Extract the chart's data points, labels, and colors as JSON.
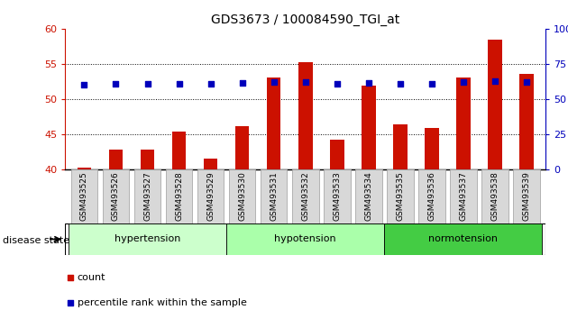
{
  "title": "GDS3673 / 100084590_TGI_at",
  "samples": [
    "GSM493525",
    "GSM493526",
    "GSM493527",
    "GSM493528",
    "GSM493529",
    "GSM493530",
    "GSM493531",
    "GSM493532",
    "GSM493533",
    "GSM493534",
    "GSM493535",
    "GSM493536",
    "GSM493537",
    "GSM493538",
    "GSM493539"
  ],
  "count_values": [
    40.2,
    42.8,
    42.8,
    45.3,
    41.5,
    46.1,
    53.1,
    55.2,
    44.2,
    51.9,
    46.4,
    45.9,
    53.1,
    58.5,
    53.5
  ],
  "percentile_values": [
    60.0,
    60.5,
    60.5,
    60.5,
    60.5,
    61.5,
    62.0,
    62.0,
    60.5,
    61.5,
    60.5,
    60.5,
    62.0,
    62.5,
    62.0
  ],
  "bar_color": "#cc1100",
  "dot_color": "#0000bb",
  "groups": [
    {
      "label": "hypertension",
      "start": 0,
      "end": 5
    },
    {
      "label": "hypotension",
      "start": 5,
      "end": 10
    },
    {
      "label": "normotension",
      "start": 10,
      "end": 15
    }
  ],
  "group_colors": [
    "#ccffcc",
    "#aaffaa",
    "#44cc44"
  ],
  "ylim_left": [
    40,
    60
  ],
  "ylim_right": [
    0,
    100
  ],
  "yticks_left": [
    40,
    45,
    50,
    55,
    60
  ],
  "yticks_right": [
    0,
    25,
    50,
    75,
    100
  ],
  "ytick_labels_right": [
    "0",
    "25",
    "50",
    "75",
    "100%"
  ],
  "grid_values": [
    45,
    50,
    55
  ],
  "bar_width": 0.45,
  "dot_size": 22,
  "left_axis_color": "#cc1100",
  "right_axis_color": "#0000bb",
  "legend_items": [
    "count",
    "percentile rank within the sample"
  ],
  "disease_state_label": "disease state"
}
